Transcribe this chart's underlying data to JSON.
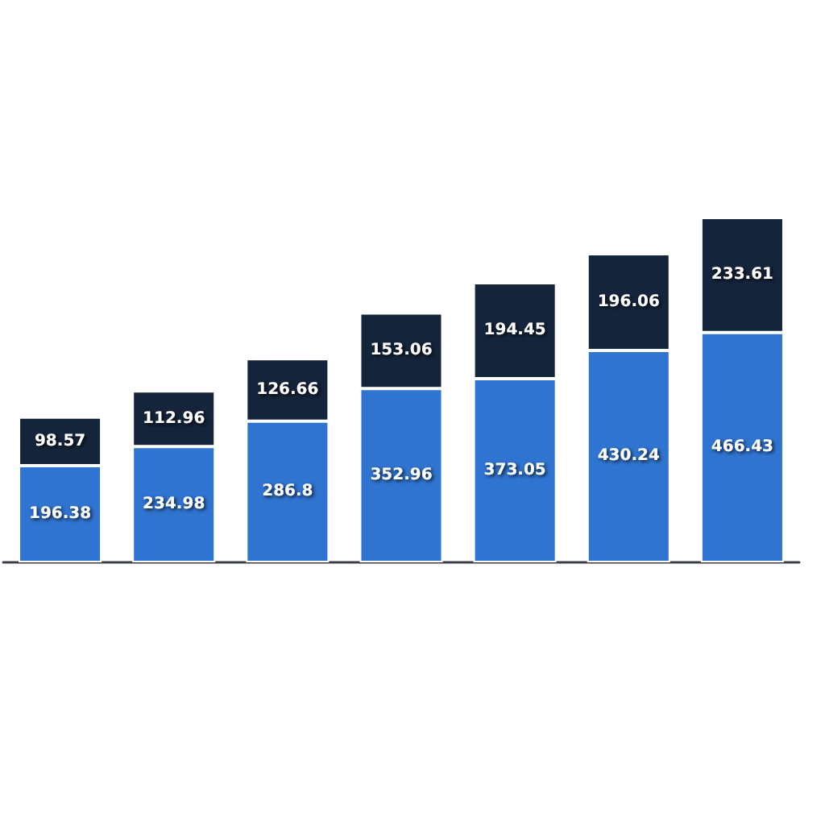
{
  "chart_data": {
    "type": "bar",
    "stacked": true,
    "data_labels": true,
    "categories": [
      null,
      null,
      null,
      null,
      null,
      null,
      null
    ],
    "series": [
      {
        "color": "#2f74d0",
        "values": [
          196.38,
          234.98,
          286.8,
          352.96,
          373.05,
          430.24,
          466.43
        ]
      },
      {
        "color": "#14243a",
        "values": [
          98.57,
          112.96,
          126.66,
          153.06,
          194.45,
          196.06,
          233.61
        ]
      }
    ]
  }
}
